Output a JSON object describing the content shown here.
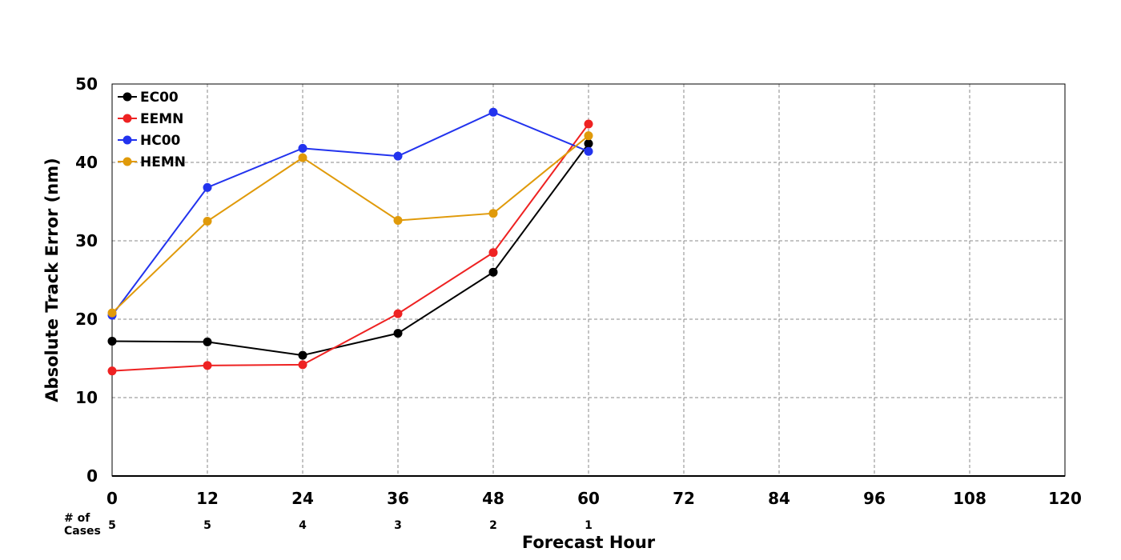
{
  "chart_data": {
    "type": "line",
    "title": "",
    "xlabel": "Forecast Hour",
    "ylabel": "Absolute Track Error (nm)",
    "xlim": [
      0,
      120
    ],
    "ylim": [
      0,
      50
    ],
    "xticks": [
      0,
      12,
      24,
      36,
      48,
      60,
      72,
      84,
      96,
      108,
      120
    ],
    "yticks": [
      0,
      10,
      20,
      30,
      40,
      50
    ],
    "grid": true,
    "legend_position": "top-left",
    "x": [
      0,
      12,
      24,
      36,
      48,
      60
    ],
    "series": [
      {
        "name": "EC00",
        "color": "#000000",
        "values": [
          17.2,
          17.1,
          15.4,
          18.2,
          26.0,
          42.4
        ]
      },
      {
        "name": "EEMN",
        "color": "#ee2222",
        "values": [
          13.4,
          14.1,
          14.2,
          20.7,
          28.5,
          44.9
        ]
      },
      {
        "name": "HC00",
        "color": "#2233ee",
        "values": [
          20.5,
          36.8,
          41.8,
          40.8,
          46.4,
          41.4
        ]
      },
      {
        "name": "HEMN",
        "color": "#e09a0a",
        "values": [
          20.8,
          32.5,
          40.6,
          32.6,
          33.5,
          43.4
        ]
      }
    ],
    "cases": {
      "label_line1": "# of",
      "label_line2": "Cases",
      "values": [
        5,
        5,
        4,
        3,
        2,
        1
      ]
    }
  }
}
